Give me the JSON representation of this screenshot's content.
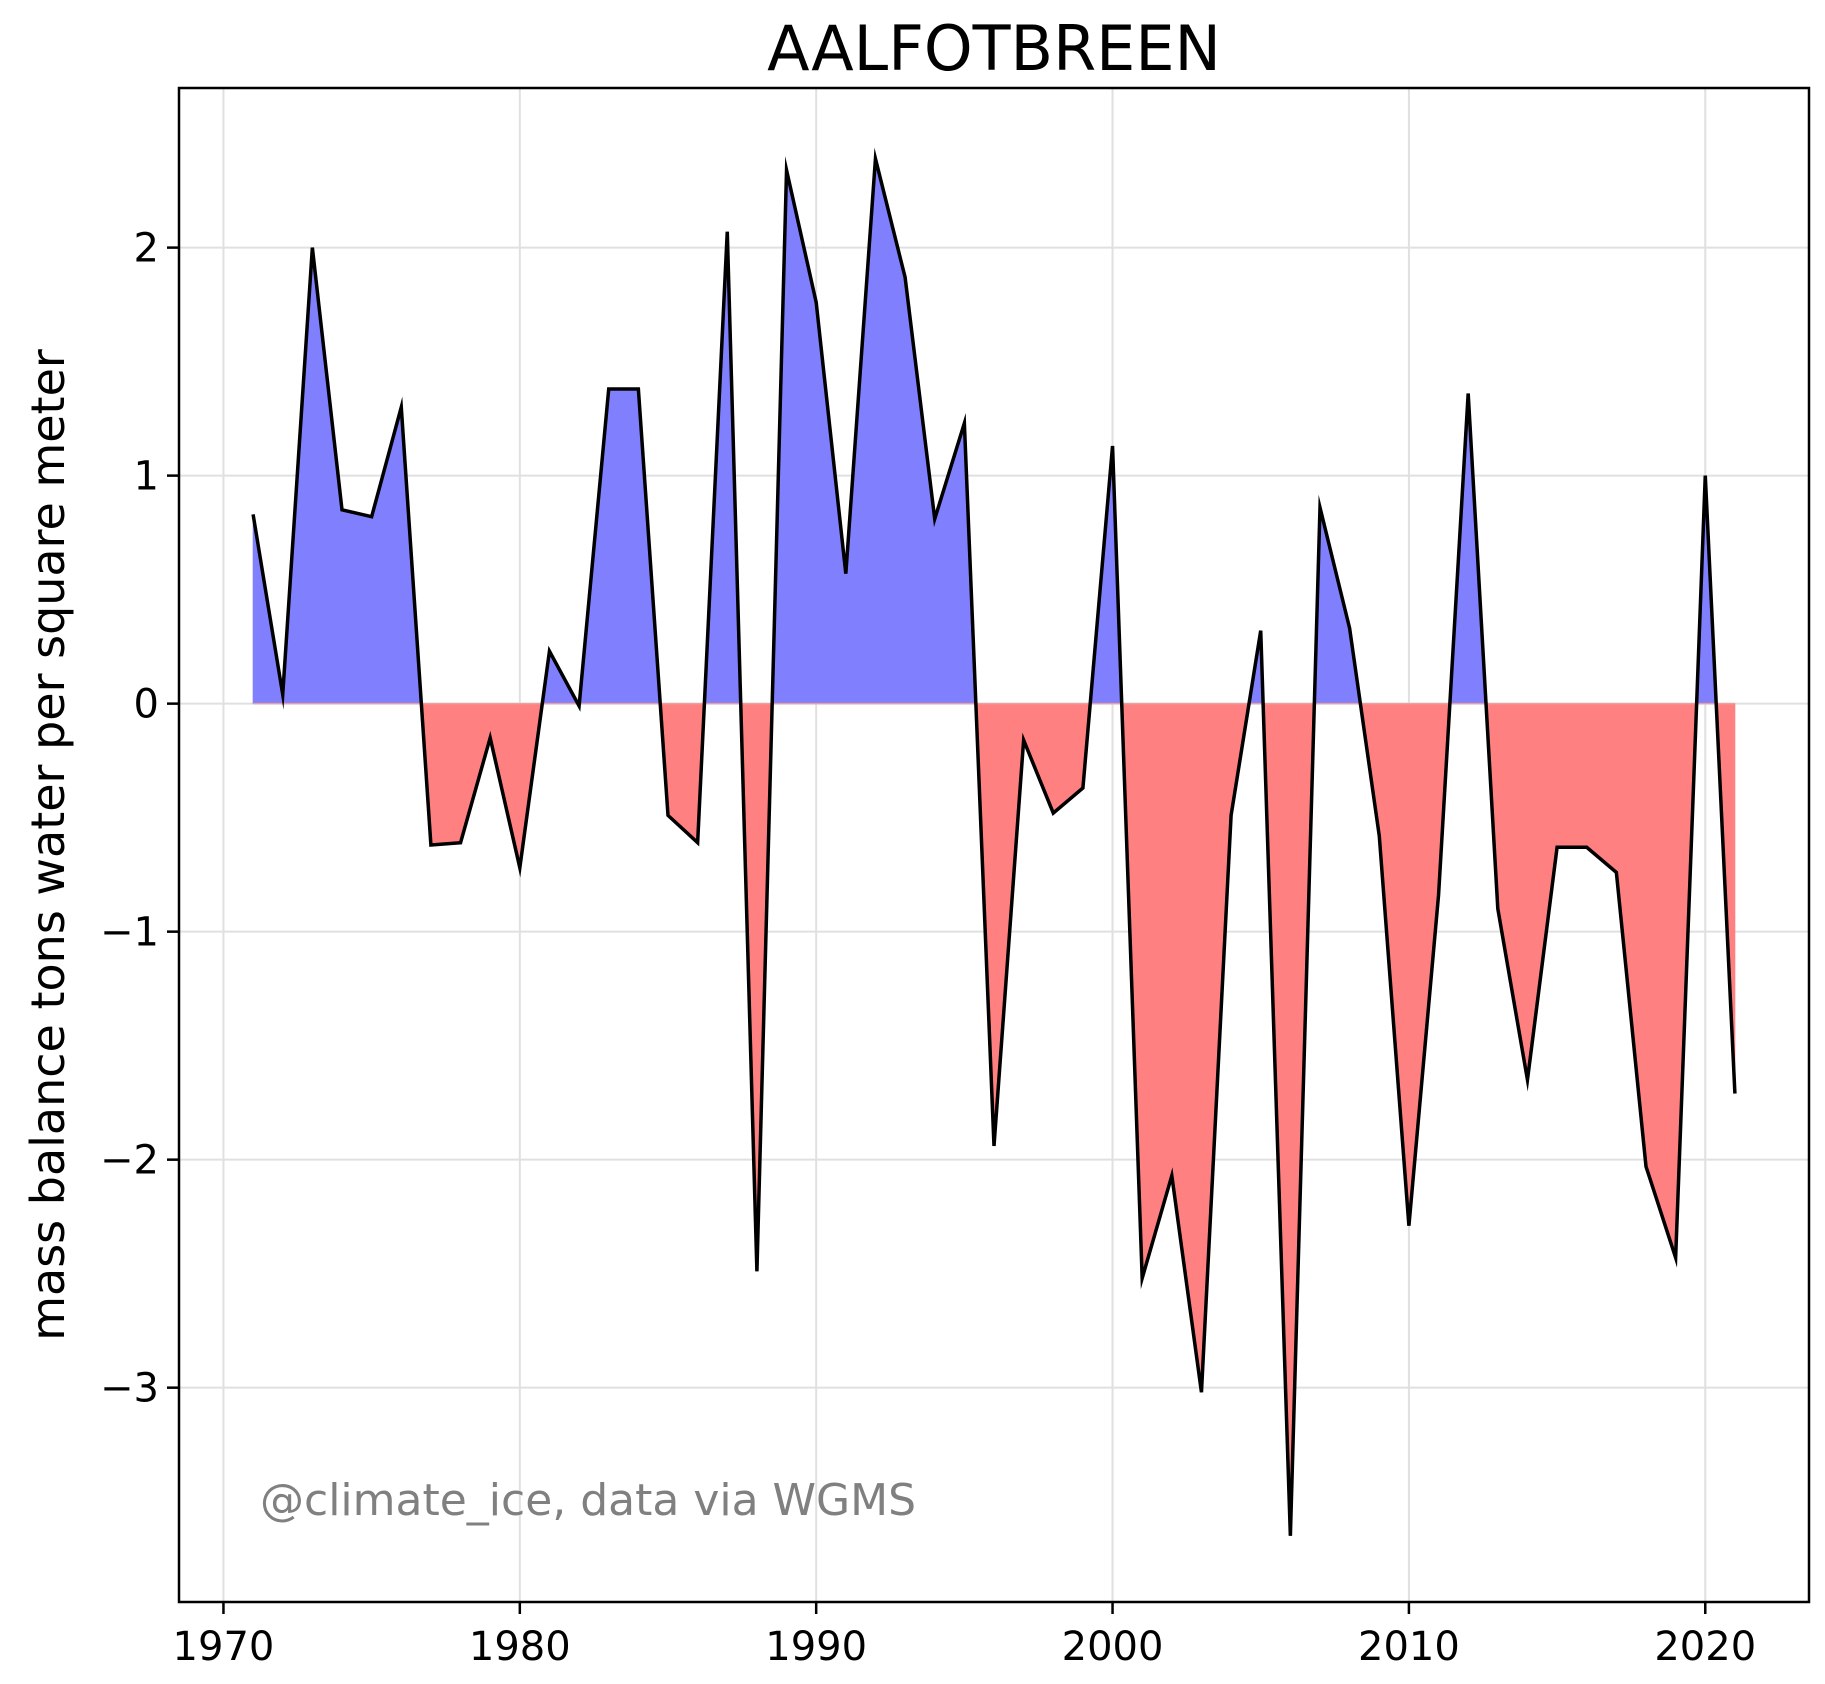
{
  "chart_data": {
    "type": "area",
    "title": "AALFOTBREEN",
    "xlabel": "",
    "ylabel": "mass balance tons water per square meter",
    "annotation": "@climate_ice, data via WGMS",
    "xlim": [
      1968.5,
      2023.5
    ],
    "ylim": [
      -3.94,
      2.7
    ],
    "x_ticks": [
      1970,
      1980,
      1990,
      2000,
      2010,
      2020
    ],
    "x_tick_labels": [
      "1970",
      "1980",
      "1990",
      "2000",
      "2010",
      "2020"
    ],
    "y_ticks": [
      -3,
      -2,
      -1,
      0,
      1,
      2
    ],
    "y_tick_labels": [
      "−3",
      "−2",
      "−1",
      "0",
      "1",
      "2"
    ],
    "grid": true,
    "legend": "none",
    "colors": {
      "line": "#000000",
      "positive_fill": "#8080ff",
      "negative_fill": "#ff8080",
      "grid": "#e0e0e0",
      "annotation": "#808080"
    },
    "x": [
      1971,
      1972,
      1973,
      1974,
      1975,
      1976,
      1977,
      1978,
      1979,
      1980,
      1981,
      1982,
      1983,
      1984,
      1985,
      1986,
      1987,
      1988,
      1989,
      1990,
      1991,
      1992,
      1993,
      1994,
      1995,
      1996,
      1997,
      1998,
      1999,
      2000,
      2001,
      2002,
      2003,
      2004,
      2005,
      2006,
      2007,
      2008,
      2009,
      2010,
      2011,
      2012,
      2013,
      2014,
      2015,
      2016,
      2017,
      2018,
      2019,
      2020,
      2021
    ],
    "series": [
      {
        "values": [
          0.83,
          0.04,
          2.0,
          0.85,
          0.82,
          1.3,
          -0.62,
          -0.61,
          -0.15,
          -0.72,
          0.23,
          -0.01,
          1.38,
          1.38,
          -0.49,
          -0.61,
          2.07,
          -2.49,
          2.34,
          1.76,
          0.57,
          2.39,
          1.87,
          0.81,
          1.23,
          -1.94,
          -0.16,
          -0.48,
          -0.37,
          1.13,
          -2.52,
          -2.07,
          -3.02,
          -0.49,
          0.32,
          -3.65,
          0.86,
          0.33,
          -0.58,
          -2.29,
          -0.84,
          1.36,
          -0.9,
          -1.65,
          -0.63,
          -0.63,
          -0.74,
          -2.03,
          -2.43,
          1.0,
          -1.71
        ]
      }
    ]
  }
}
